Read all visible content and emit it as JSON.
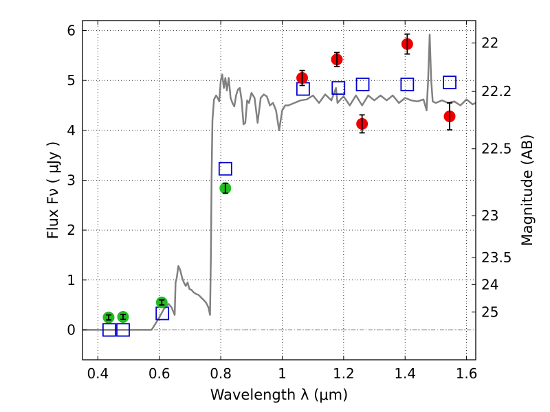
{
  "chart_data": {
    "type": "scatter",
    "xlabel": "Wavelength  λ (μm)",
    "ylabel": "Flux  Fν  ( μJy )",
    "y2label": "Magnitude (AB)",
    "xlim": [
      0.35,
      1.63
    ],
    "ylim": [
      -0.6,
      6.2
    ],
    "grid": true,
    "x_ticks": [
      0.4,
      0.6,
      0.8,
      1.0,
      1.2,
      1.4,
      1.6
    ],
    "x_tick_labels": [
      "0.4",
      "0.6",
      "0.8",
      "1",
      "1.2",
      "1.4",
      "1.6"
    ],
    "y_ticks": [
      0,
      1,
      2,
      3,
      4,
      5,
      6
    ],
    "y_tick_labels": [
      "0",
      "1",
      "2",
      "3",
      "4",
      "5",
      "6"
    ],
    "y2_ticks": [
      {
        "flux": 5.75,
        "label": "22"
      },
      {
        "flux": 4.78,
        "label": "22.2"
      },
      {
        "flux": 3.63,
        "label": "22.5"
      },
      {
        "flux": 2.29,
        "label": "23"
      },
      {
        "flux": 1.45,
        "label": "23.5"
      },
      {
        "flux": 0.91,
        "label": "24"
      },
      {
        "flux": 0.36,
        "label": "25"
      }
    ],
    "colors": {
      "model": "#808080",
      "green": "#22bb22",
      "red": "#ee0000",
      "blue_square": "#0000cc",
      "zero_line": "#666666"
    },
    "model_spectrum": {
      "name": "",
      "x": [
        0.35,
        0.42,
        0.5,
        0.575,
        0.59,
        0.6,
        0.615,
        0.63,
        0.64,
        0.65,
        0.653,
        0.657,
        0.662,
        0.668,
        0.674,
        0.68,
        0.686,
        0.692,
        0.698,
        0.705,
        0.712,
        0.72,
        0.728,
        0.736,
        0.744,
        0.752,
        0.76,
        0.765,
        0.768,
        0.77,
        0.773,
        0.778,
        0.785,
        0.79,
        0.795,
        0.8,
        0.805,
        0.81,
        0.815,
        0.82,
        0.826,
        0.832,
        0.838,
        0.844,
        0.85,
        0.856,
        0.862,
        0.868,
        0.874,
        0.88,
        0.886,
        0.892,
        0.9,
        0.91,
        0.92,
        0.93,
        0.94,
        0.95,
        0.96,
        0.97,
        0.98,
        0.99,
        1.0,
        1.01,
        1.02,
        1.04,
        1.06,
        1.08,
        1.1,
        1.12,
        1.14,
        1.16,
        1.175,
        1.18,
        1.19,
        1.2,
        1.22,
        1.24,
        1.26,
        1.28,
        1.3,
        1.32,
        1.34,
        1.36,
        1.38,
        1.4,
        1.42,
        1.44,
        1.46,
        1.47,
        1.475,
        1.48,
        1.485,
        1.49,
        1.5,
        1.52,
        1.54,
        1.56,
        1.58,
        1.6,
        1.62,
        1.63
      ],
      "y": [
        0.0,
        0.0,
        0.0,
        0.0,
        0.15,
        0.25,
        0.42,
        0.52,
        0.45,
        0.3,
        0.95,
        1.05,
        1.28,
        1.2,
        1.05,
        0.95,
        0.88,
        0.95,
        0.82,
        0.8,
        0.75,
        0.72,
        0.7,
        0.65,
        0.6,
        0.55,
        0.45,
        0.3,
        1.5,
        3.0,
        4.2,
        4.62,
        4.7,
        4.65,
        4.58,
        5.0,
        5.12,
        4.85,
        5.05,
        4.8,
        5.05,
        4.65,
        4.55,
        4.48,
        4.7,
        4.82,
        4.85,
        4.6,
        4.12,
        4.15,
        4.6,
        4.55,
        4.75,
        4.65,
        4.15,
        4.65,
        4.72,
        4.68,
        4.5,
        4.55,
        4.4,
        4.0,
        4.4,
        4.5,
        4.5,
        4.55,
        4.6,
        4.62,
        4.7,
        4.55,
        4.72,
        4.6,
        4.85,
        4.55,
        4.62,
        4.68,
        4.5,
        4.7,
        4.5,
        4.7,
        4.6,
        4.7,
        4.6,
        4.7,
        4.55,
        4.65,
        4.6,
        4.58,
        4.62,
        4.4,
        5.0,
        5.92,
        5.0,
        4.58,
        4.55,
        4.6,
        4.55,
        4.58,
        4.5,
        4.62,
        4.52,
        4.55
      ]
    },
    "green_points": {
      "name": "",
      "x": [
        0.435,
        0.482,
        0.608,
        0.815
      ],
      "y": [
        0.25,
        0.26,
        0.55,
        2.84
      ],
      "err": [
        0.05,
        0.05,
        0.05,
        0.1
      ]
    },
    "red_points": {
      "name": "",
      "x": [
        1.065,
        1.178,
        1.26,
        1.407,
        1.545
      ],
      "y": [
        5.05,
        5.42,
        4.13,
        5.73,
        4.28
      ],
      "err": [
        0.15,
        0.14,
        0.18,
        0.2,
        0.27
      ]
    },
    "blue_squares": {
      "name": "",
      "x": [
        0.437,
        0.482,
        0.61,
        0.815,
        1.068,
        1.183,
        1.262,
        1.407,
        1.545
      ],
      "y": [
        0.0,
        0.0,
        0.33,
        3.23,
        4.83,
        4.85,
        4.92,
        4.92,
        4.96
      ]
    },
    "reference_line": {
      "y": 0
    }
  }
}
